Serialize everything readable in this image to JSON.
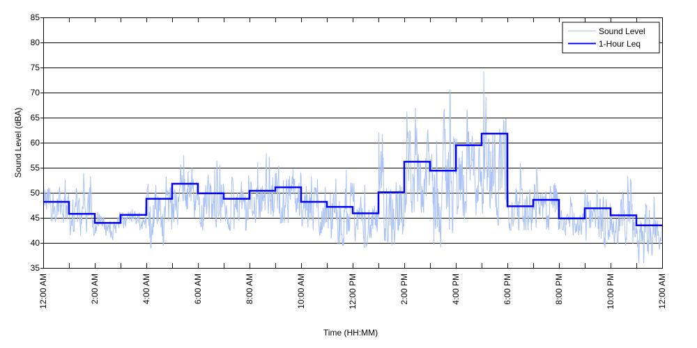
{
  "chart_data": {
    "type": "line",
    "title": "",
    "xlabel": "Time (HH:MM)",
    "ylabel": "Sound Level (dBA)",
    "ylim": [
      35,
      85
    ],
    "yticks": [
      35,
      40,
      45,
      50,
      55,
      60,
      65,
      70,
      75,
      80,
      85
    ],
    "xlim_hours": [
      0,
      24
    ],
    "xtick_hours": [
      0,
      1,
      2,
      3,
      4,
      5,
      6,
      7,
      8,
      9,
      10,
      11,
      12,
      13,
      14,
      15,
      16,
      17,
      18,
      19,
      20,
      21,
      22,
      23,
      24
    ],
    "xtick_labels": {
      "0": "12:00 AM",
      "2": "2:00 AM",
      "4": "4:00 AM",
      "6": "6:00 AM",
      "8": "8:00 AM",
      "10": "10:00 AM",
      "12": "12:00 PM",
      "14": "2:00 PM",
      "16": "4:00 PM",
      "18": "6:00 PM",
      "20": "8:00 PM",
      "22": "10:00 PM",
      "24": "12:00 AM"
    },
    "grid": "horizontal",
    "legend_position": "upper right",
    "series": [
      {
        "name": "Sound Level",
        "color": "#a9c1f5",
        "style": "thin-noisy",
        "hourly_envelope": [
          {
            "hour": 0,
            "mean": 47.5,
            "low": 44,
            "high": 56
          },
          {
            "hour": 1,
            "mean": 45.0,
            "low": 41.5,
            "high": 54
          },
          {
            "hour": 2,
            "mean": 43.5,
            "low": 40.5,
            "high": 46.5
          },
          {
            "hour": 3,
            "mean": 45.0,
            "low": 42.5,
            "high": 47.5
          },
          {
            "hour": 4,
            "mean": 46.5,
            "low": 39,
            "high": 54
          },
          {
            "hour": 5,
            "mean": 50.0,
            "low": 43.5,
            "high": 58
          },
          {
            "hour": 6,
            "mean": 48.0,
            "low": 41.5,
            "high": 57
          },
          {
            "hour": 7,
            "mean": 47.0,
            "low": 42.5,
            "high": 55.5
          },
          {
            "hour": 8,
            "mean": 49.0,
            "low": 44,
            "high": 58.5
          },
          {
            "hour": 9,
            "mean": 49.5,
            "low": 44,
            "high": 60.5
          },
          {
            "hour": 10,
            "mean": 46.5,
            "low": 41.5,
            "high": 56.5
          },
          {
            "hour": 11,
            "mean": 45.5,
            "low": 39.5,
            "high": 57.5
          },
          {
            "hour": 12,
            "mean": 43.5,
            "low": 39,
            "high": 52
          },
          {
            "hour": 13,
            "mean": 47.5,
            "low": 39.5,
            "high": 64
          },
          {
            "hour": 14,
            "mean": 53.0,
            "low": 46,
            "high": 71.5
          },
          {
            "hour": 15,
            "mean": 52.0,
            "low": 39,
            "high": 71
          },
          {
            "hour": 16,
            "mean": 55.0,
            "low": 43,
            "high": 68.5
          },
          {
            "hour": 17,
            "mean": 55.0,
            "low": 43.5,
            "high": 75.5
          },
          {
            "hour": 18,
            "mean": 46.0,
            "low": 42.5,
            "high": 56
          },
          {
            "hour": 19,
            "mean": 46.5,
            "low": 42,
            "high": 56
          },
          {
            "hour": 20,
            "mean": 44.0,
            "low": 41,
            "high": 50
          },
          {
            "hour": 21,
            "mean": 45.0,
            "low": 39,
            "high": 54
          },
          {
            "hour": 22,
            "mean": 44.0,
            "low": 39.5,
            "high": 53.5
          },
          {
            "hour": 23,
            "mean": 41.5,
            "low": 36,
            "high": 50
          }
        ]
      },
      {
        "name": "1-Hour Leq",
        "color": "#0000ff",
        "style": "step",
        "x_hours": [
          0,
          1,
          2,
          3,
          4,
          5,
          6,
          7,
          8,
          9,
          10,
          11,
          12,
          13,
          14,
          15,
          16,
          17,
          18,
          19,
          20,
          21,
          22,
          23
        ],
        "values": [
          48.2,
          45.8,
          44.0,
          45.6,
          48.8,
          51.8,
          49.9,
          48.8,
          50.4,
          51.1,
          48.2,
          47.2,
          45.9,
          50.1,
          56.2,
          54.4,
          59.5,
          61.8,
          47.3,
          48.6,
          44.9,
          46.9,
          45.5,
          43.5
        ]
      }
    ]
  },
  "legend": {
    "items": [
      {
        "label": "Sound Level",
        "color": "#a9c1f5"
      },
      {
        "label": "1-Hour Leq",
        "color": "#0000ff"
      }
    ]
  }
}
